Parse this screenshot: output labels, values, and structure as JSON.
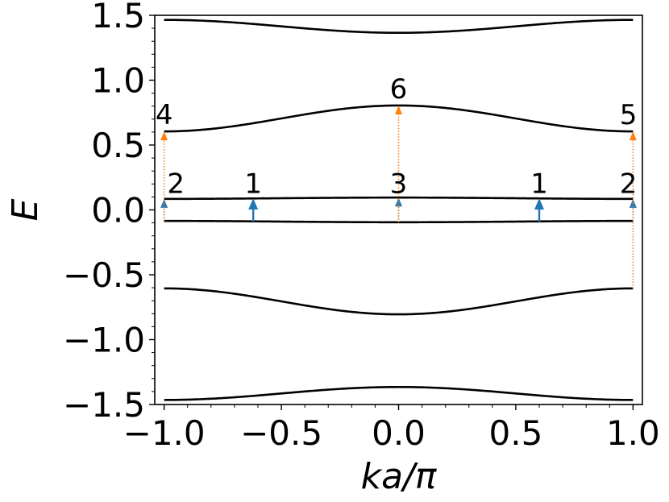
{
  "chart_data": {
    "type": "line",
    "title": "",
    "xlabel": "ka/π",
    "ylabel": "E",
    "xlim": [
      -1.04,
      1.04
    ],
    "ylim": [
      -1.5,
      1.5
    ],
    "xticks": [
      {
        "value": -1.0,
        "label": "−1.0"
      },
      {
        "value": -0.5,
        "label": "−0.5"
      },
      {
        "value": 0.0,
        "label": "0.0"
      },
      {
        "value": 0.5,
        "label": "0.5"
      },
      {
        "value": 1.0,
        "label": "1.0"
      }
    ],
    "yticks": [
      {
        "value": 1.5,
        "label": "1.5"
      },
      {
        "value": 1.0,
        "label": "1.0"
      },
      {
        "value": 0.5,
        "label": "0.5"
      },
      {
        "value": 0.0,
        "label": "0.0"
      },
      {
        "value": -0.5,
        "label": "−0.5"
      },
      {
        "value": -1.0,
        "label": "−1.0"
      },
      {
        "value": -1.5,
        "label": "−1.5"
      }
    ],
    "grid": false,
    "bands": [
      {
        "edge": 1.465,
        "center": 1.365
      },
      {
        "edge": 0.605,
        "center": 0.805
      },
      {
        "edge": 0.085,
        "center": 0.095
      },
      {
        "edge": -0.085,
        "center": -0.095
      },
      {
        "edge": -0.605,
        "center": -0.805
      },
      {
        "edge": -1.465,
        "center": -1.365
      }
    ],
    "line_color": "#000000",
    "transitions": [
      {
        "x": -0.62,
        "y_from": -0.09,
        "y_to": 0.09,
        "style": "solid",
        "color": "#1f77b4"
      },
      {
        "x": 0.6,
        "y_from": -0.09,
        "y_to": 0.09,
        "style": "solid",
        "color": "#1f77b4"
      },
      {
        "x": -1.0,
        "y_from": -0.085,
        "y_to": 0.085,
        "style": "dotted",
        "color": "#1f77b4"
      },
      {
        "x": 0.0,
        "y_from": -0.095,
        "y_to": 0.095,
        "style": "dotted",
        "color": "#1f77b4"
      },
      {
        "x": 1.0,
        "y_from": -0.085,
        "y_to": 0.085,
        "style": "dotted",
        "color": "#1f77b4"
      },
      {
        "x": -1.0,
        "y_from": -0.085,
        "y_to": 0.605,
        "style": "dotted",
        "color": "#ff7f0e"
      },
      {
        "x": 0.0,
        "y_from": -0.095,
        "y_to": 0.805,
        "style": "dotted",
        "color": "#ff7f0e"
      },
      {
        "x": 1.0,
        "y_from": -0.605,
        "y_to": 0.605,
        "style": "dotted",
        "color": "#ff7f0e"
      }
    ],
    "annotations": [
      {
        "text": "4",
        "x": -1.0,
        "y": 0.66
      },
      {
        "text": "6",
        "x": 0.0,
        "y": 0.86
      },
      {
        "text": "5",
        "x": 0.98,
        "y": 0.66
      },
      {
        "text": "2",
        "x": -0.95,
        "y": 0.13
      },
      {
        "text": "1",
        "x": -0.62,
        "y": 0.13
      },
      {
        "text": "3",
        "x": 0.0,
        "y": 0.13
      },
      {
        "text": "1",
        "x": 0.6,
        "y": 0.13
      },
      {
        "text": "2",
        "x": 0.98,
        "y": 0.13
      }
    ]
  }
}
